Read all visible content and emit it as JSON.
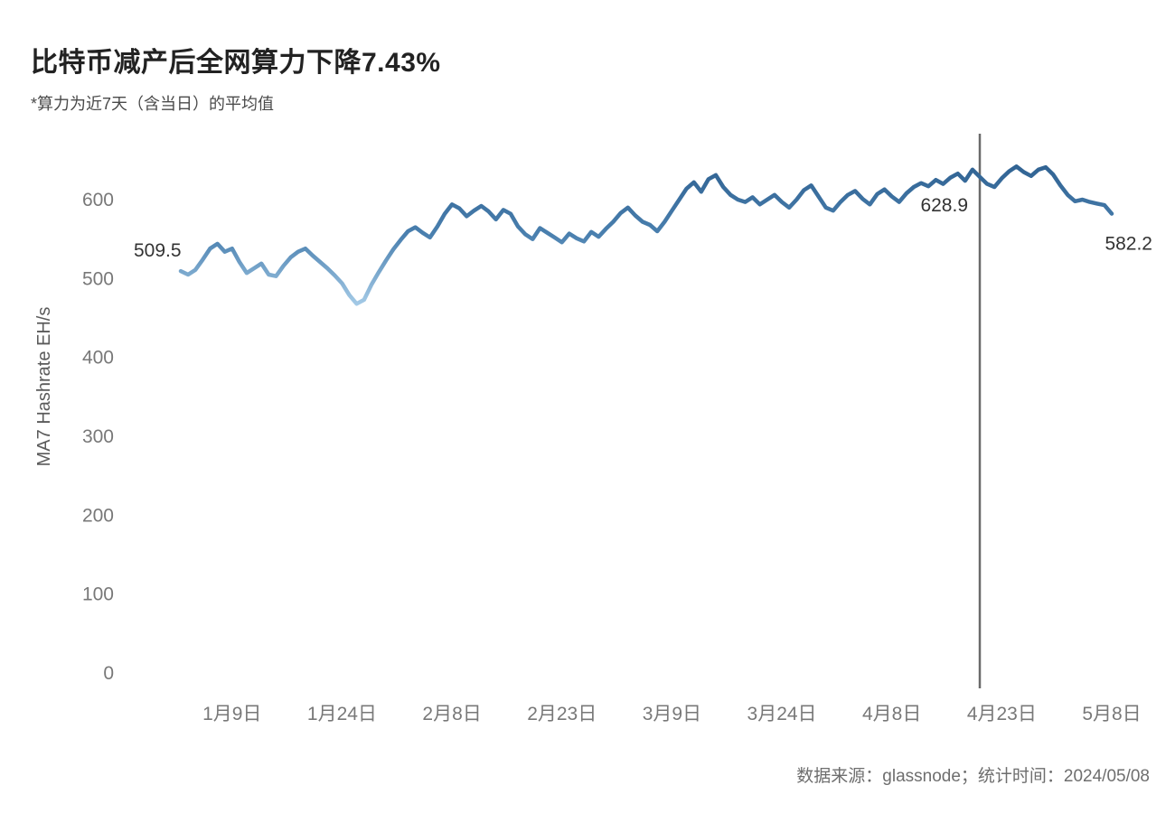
{
  "page": {
    "title": "比特币减产后全网算力下降7.43%",
    "subtitle": "*算力为近7天（含当日）的平均值",
    "source": "数据来源：glassnode；统计时间：2024/05/08"
  },
  "colors": {
    "title": "#222222",
    "axis_text": "#787878",
    "ylabel_text": "#5a5a5a",
    "annotation": "#333333",
    "vline": "#6b6b6b",
    "line_dark": "#2d5f8f",
    "line_mid": "#4a80af",
    "line_light": "#b0d4ee"
  },
  "chart_data": {
    "type": "line",
    "title": "比特币减产后全网算力下降7.43%",
    "subtitle": "*算力为近7天（含当日）的平均值",
    "xlabel": "",
    "ylabel": "MA7 Hashrate EH/s",
    "grid": false,
    "legend": "none",
    "ylim": [
      0,
      680
    ],
    "yticks": [
      0,
      100,
      200,
      300,
      400,
      500,
      600
    ],
    "x_tick_labels": [
      "1月9日",
      "1月24日",
      "2月8日",
      "2月23日",
      "3月9日",
      "3月24日",
      "4月8日",
      "4月23日",
      "5月8日"
    ],
    "x_tick_indices": [
      7,
      22,
      37,
      52,
      67,
      82,
      97,
      112,
      127
    ],
    "values": [
      509.5,
      505,
      511,
      524,
      538,
      544,
      534,
      538,
      521,
      507,
      513,
      519,
      505,
      503,
      516,
      527,
      534,
      538,
      529,
      521,
      513,
      504,
      494,
      479,
      468,
      473,
      492,
      508,
      523,
      537,
      549,
      560,
      565,
      558,
      552,
      566,
      582,
      594,
      589,
      579,
      586,
      592,
      585,
      575,
      587,
      582,
      566,
      556,
      550,
      564,
      558,
      552,
      546,
      557,
      551,
      547,
      559,
      553,
      563,
      572,
      583,
      590,
      580,
      572,
      568,
      560,
      572,
      586,
      600,
      614,
      622,
      610,
      626,
      631,
      616,
      606,
      600,
      597,
      603,
      594,
      600,
      606,
      597,
      590,
      600,
      612,
      618,
      604,
      590,
      586,
      597,
      606,
      611,
      601,
      594,
      607,
      613,
      604,
      597,
      608,
      616,
      621,
      617,
      625,
      620,
      628,
      633,
      624,
      638,
      628.9,
      620,
      616,
      627,
      636,
      642,
      635,
      630,
      638,
      641,
      632,
      618,
      606,
      598,
      600,
      597,
      595,
      593,
      582.2
    ],
    "vline": {
      "index": 109,
      "meaning": "减产（halving）"
    },
    "annotations": [
      {
        "text": "509.5",
        "index": 0,
        "placement": "above-left"
      },
      {
        "text": "628.9",
        "index": 109,
        "placement": "below-left"
      },
      {
        "text": "582.2",
        "index": 127,
        "placement": "below-right"
      }
    ]
  }
}
